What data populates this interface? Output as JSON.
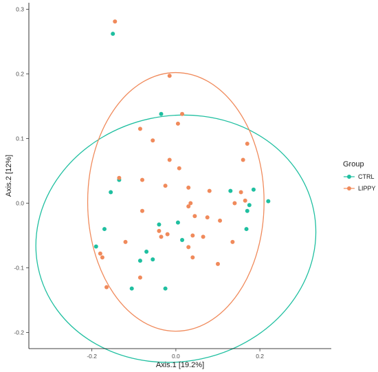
{
  "chart_data": {
    "type": "scatter",
    "xlabel": "Axis.1   [19.2%]",
    "ylabel": "Axis.2   [12%]",
    "xlim": [
      -0.35,
      0.37
    ],
    "ylim": [
      -0.225,
      0.31
    ],
    "x_ticks": [
      -0.2,
      0.0,
      0.2
    ],
    "x_tick_labels": [
      "-0.2",
      "0.0",
      "0.2"
    ],
    "y_ticks": [
      -0.2,
      -0.1,
      0.0,
      0.1,
      0.2,
      0.3
    ],
    "y_tick_labels": [
      "-0.2",
      "-0.1",
      "0.0",
      "0.1",
      "0.2",
      "0.3"
    ],
    "grid": false,
    "legend": {
      "title": "Group",
      "placement": "right",
      "entries": [
        {
          "name": "CTRL",
          "color": "#1fbfa0"
        },
        {
          "name": "LIPPY",
          "color": "#f08a5b"
        }
      ]
    },
    "series": [
      {
        "name": "CTRL",
        "color": "#1fbfa0",
        "ellipse": {
          "cx": 0.0,
          "cy": -0.055,
          "rx": 0.335,
          "ry": 0.19,
          "rotation_deg": -12
        },
        "points": [
          {
            "x": -0.15,
            "y": 0.262
          },
          {
            "x": -0.135,
            "y": 0.036
          },
          {
            "x": -0.155,
            "y": 0.017
          },
          {
            "x": -0.035,
            "y": 0.138
          },
          {
            "x": -0.17,
            "y": -0.04
          },
          {
            "x": -0.19,
            "y": -0.067
          },
          {
            "x": -0.085,
            "y": -0.089
          },
          {
            "x": -0.07,
            "y": -0.075
          },
          {
            "x": -0.055,
            "y": -0.087
          },
          {
            "x": -0.04,
            "y": -0.033
          },
          {
            "x": -0.025,
            "y": -0.132
          },
          {
            "x": -0.105,
            "y": -0.132
          },
          {
            "x": 0.005,
            "y": -0.03
          },
          {
            "x": 0.015,
            "y": -0.057
          },
          {
            "x": 0.13,
            "y": 0.019
          },
          {
            "x": 0.185,
            "y": 0.021
          },
          {
            "x": 0.22,
            "y": 0.003
          },
          {
            "x": 0.175,
            "y": -0.003
          },
          {
            "x": 0.17,
            "y": -0.012
          },
          {
            "x": 0.168,
            "y": -0.04
          }
        ]
      },
      {
        "name": "LIPPY",
        "color": "#f08a5b",
        "ellipse": {
          "cx": 0.0,
          "cy": 0.002,
          "rx": 0.21,
          "ry": 0.2,
          "rotation_deg": 0
        },
        "points": [
          {
            "x": -0.145,
            "y": 0.281
          },
          {
            "x": -0.015,
            "y": 0.197
          },
          {
            "x": 0.015,
            "y": 0.138
          },
          {
            "x": 0.005,
            "y": 0.123
          },
          {
            "x": -0.085,
            "y": 0.115
          },
          {
            "x": -0.055,
            "y": 0.097
          },
          {
            "x": -0.015,
            "y": 0.067
          },
          {
            "x": 0.008,
            "y": 0.054
          },
          {
            "x": 0.17,
            "y": 0.092
          },
          {
            "x": 0.16,
            "y": 0.067
          },
          {
            "x": -0.135,
            "y": 0.039
          },
          {
            "x": -0.08,
            "y": 0.036
          },
          {
            "x": -0.025,
            "y": 0.027
          },
          {
            "x": 0.03,
            "y": 0.024
          },
          {
            "x": 0.08,
            "y": 0.019
          },
          {
            "x": 0.155,
            "y": 0.017
          },
          {
            "x": 0.165,
            "y": 0.004
          },
          {
            "x": 0.035,
            "y": 0.0
          },
          {
            "x": 0.03,
            "y": -0.005
          },
          {
            "x": 0.14,
            "y": 0.0
          },
          {
            "x": -0.08,
            "y": -0.012
          },
          {
            "x": 0.045,
            "y": -0.02
          },
          {
            "x": 0.075,
            "y": -0.022
          },
          {
            "x": 0.105,
            "y": -0.027
          },
          {
            "x": -0.04,
            "y": -0.043
          },
          {
            "x": -0.02,
            "y": -0.048
          },
          {
            "x": -0.035,
            "y": -0.052
          },
          {
            "x": 0.04,
            "y": -0.05
          },
          {
            "x": 0.065,
            "y": -0.052
          },
          {
            "x": 0.135,
            "y": -0.06
          },
          {
            "x": 0.03,
            "y": -0.068
          },
          {
            "x": -0.12,
            "y": -0.06
          },
          {
            "x": -0.18,
            "y": -0.078
          },
          {
            "x": -0.175,
            "y": -0.084
          },
          {
            "x": 0.04,
            "y": -0.084
          },
          {
            "x": 0.1,
            "y": -0.094
          },
          {
            "x": -0.085,
            "y": -0.115
          },
          {
            "x": -0.165,
            "y": -0.13
          }
        ]
      }
    ]
  }
}
